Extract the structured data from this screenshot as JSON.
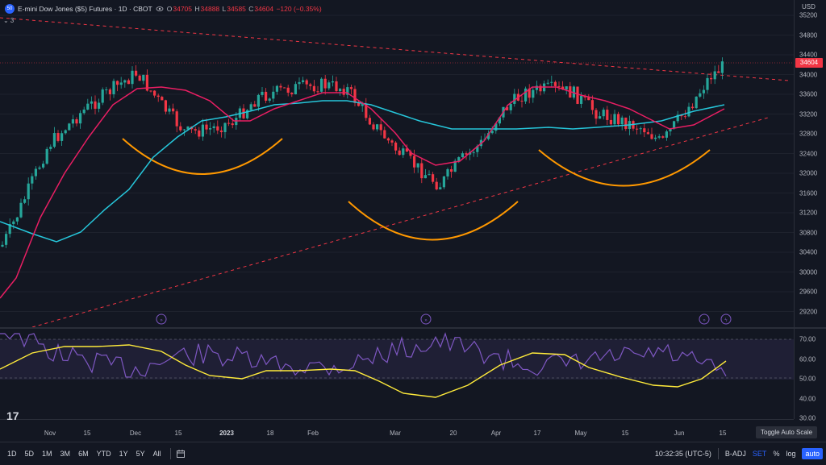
{
  "header": {
    "logo_text": "50",
    "title": "E-mini Dow Jones ($5) Futures · 1D · CBOT",
    "ohlc": {
      "o_label": "O",
      "o": "34705",
      "h_label": "H",
      "h": "34888",
      "l_label": "L",
      "l": "34585",
      "c_label": "C",
      "c": "34604",
      "change": "−120 (−0.35%)"
    },
    "indicator_count": "3"
  },
  "price_scale": {
    "currency": "USD",
    "ticks": [
      "35200",
      "34800",
      "34400",
      "34000",
      "33600",
      "33200",
      "32800",
      "32400",
      "32000",
      "31600",
      "31200",
      "30800",
      "30400",
      "30000",
      "29600",
      "29200"
    ],
    "current_price": "34604"
  },
  "rsi_scale": {
    "ticks": [
      "70.00",
      "60.00",
      "50.00",
      "40.00",
      "30.00"
    ]
  },
  "x_axis": {
    "ticks": [
      "Nov",
      "15",
      "Dec",
      "15",
      "2023",
      "18",
      "Feb",
      "Mar",
      "20",
      "Apr",
      "17",
      "May",
      "15",
      "Jun",
      "15"
    ]
  },
  "timeframes": [
    "1D",
    "5D",
    "1M",
    "3M",
    "6M",
    "YTD",
    "1Y",
    "5Y",
    "All"
  ],
  "status": {
    "time": "10:32:35 (UTC-5)",
    "badj": "B-ADJ",
    "set": "SET",
    "percent": "%",
    "log": "log",
    "auto": "auto"
  },
  "toggle_auto_scale": "Toggle Auto Scale",
  "colors": {
    "background": "#131722",
    "up": "#26a69a",
    "down": "#f23645",
    "ma_fast": "#e91e63",
    "ma_slow": "#26c6da",
    "arcs": "#ff9800",
    "trend": "#f23645",
    "rsi": "#7e57c2",
    "rsi_ma": "#ffeb3b"
  }
}
